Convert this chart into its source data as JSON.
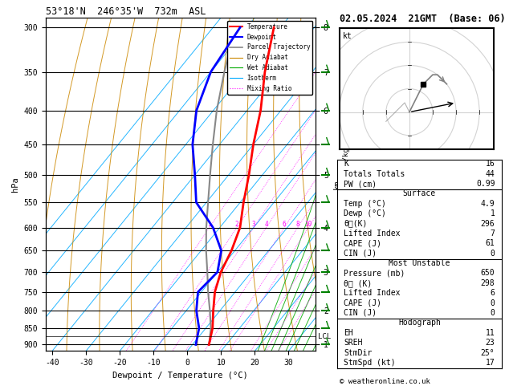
{
  "title_left": "53°18'N  246°35'W  732m  ASL",
  "title_right": "02.05.2024  21GMT  (Base: 06)",
  "xlabel": "Dewpoint / Temperature (°C)",
  "ylabel_left": "hPa",
  "bg_color": "#ffffff",
  "plot_bg": "#ffffff",
  "pressure_levels": [
    300,
    350,
    400,
    450,
    500,
    550,
    600,
    650,
    700,
    750,
    800,
    850,
    900
  ],
  "xmin": -42,
  "xmax": 38,
  "temp_profile": {
    "pressure": [
      900,
      850,
      800,
      750,
      700,
      650,
      600,
      550,
      500,
      450,
      400,
      350,
      300
    ],
    "temp": [
      4.9,
      2.0,
      -2.0,
      -6.0,
      -9.0,
      -11.0,
      -14.0,
      -19.0,
      -24.0,
      -30.0,
      -36.0,
      -44.0,
      -52.0
    ]
  },
  "dewp_profile": {
    "pressure": [
      900,
      850,
      800,
      750,
      700,
      650,
      600,
      550,
      500,
      450,
      400,
      350,
      300
    ],
    "temp": [
      1.0,
      -2.0,
      -7.0,
      -11.0,
      -10.0,
      -14.0,
      -22.0,
      -33.0,
      -40.0,
      -48.0,
      -55.0,
      -60.0,
      -62.0
    ]
  },
  "parcel_profile": {
    "pressure": [
      900,
      850,
      800,
      750,
      700,
      650,
      600,
      550,
      500,
      450,
      400,
      350,
      300
    ],
    "temp": [
      4.9,
      1.5,
      -3.0,
      -8.0,
      -13.0,
      -18.5,
      -24.0,
      -29.5,
      -35.5,
      -42.0,
      -49.0,
      -56.0,
      -63.5
    ]
  },
  "temp_color": "#ff0000",
  "dewp_color": "#0000ff",
  "parcel_color": "#888888",
  "dry_adiabat_color": "#cc8800",
  "wet_adiabat_color": "#00aa00",
  "isotherm_color": "#00aaff",
  "mixing_ratio_color": "#ff00ff",
  "km_ticks": {
    "pressures": [
      300,
      350,
      400,
      450,
      500,
      550,
      600,
      650,
      700,
      750,
      800,
      850,
      900
    ],
    "km_vals": [
      "8",
      "7",
      "6",
      "",
      "5",
      "",
      "4",
      "",
      "3",
      "",
      "2",
      "",
      "1"
    ]
  },
  "lcl_pressure": 875,
  "mixing_ratio_lines": [
    1,
    2,
    3,
    4,
    6,
    8,
    10,
    15,
    20,
    25
  ],
  "info_table": {
    "K": 16,
    "Totals_Totals": 44,
    "PW_cm": 0.99,
    "Surface_Temp": 4.9,
    "Surface_Dewp": 1,
    "Surface_theta_e": 296,
    "Surface_LI": 7,
    "Surface_CAPE": 61,
    "Surface_CIN": 0,
    "MU_Pressure": 650,
    "MU_theta_e": 298,
    "MU_LI": 6,
    "MU_CAPE": 0,
    "MU_CIN": 0,
    "EH": 11,
    "SREH": 23,
    "StmDir": "25°",
    "StmSpd": 17
  },
  "font_size": 7.5
}
